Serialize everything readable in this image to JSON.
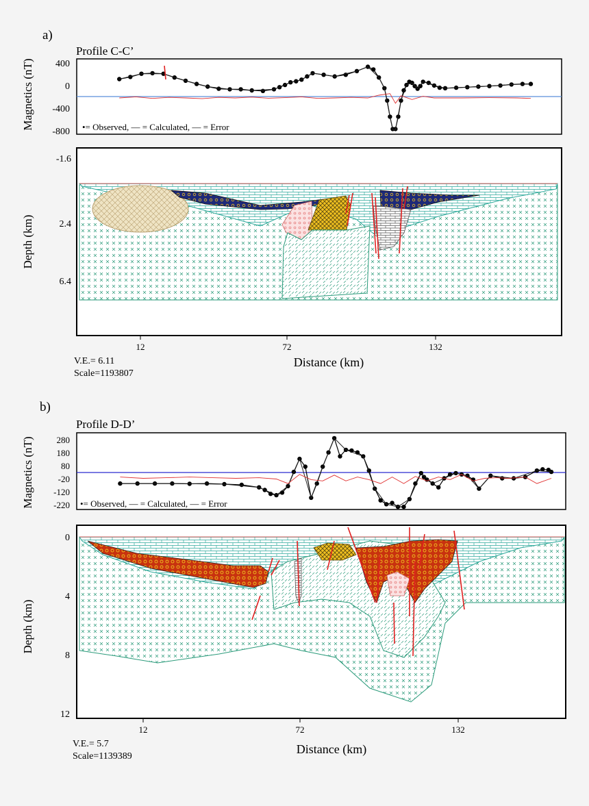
{
  "panel_a": {
    "letter": "a)",
    "profile": "Profile C-C’",
    "mag_ylabel": "Magnetics (nT)",
    "mag_ticks": [
      "400",
      "0",
      "-400",
      "-800"
    ],
    "legend": "•= Observed,   — = Calculated,   — = Error",
    "depth_ylabel": "Depth (km)",
    "depth_ticks": [
      "-1.6",
      "2.4",
      "6.4"
    ],
    "x_ticks": [
      "12",
      "72",
      "132"
    ],
    "xlabel": "Distance (km)",
    "ve": "V.E.= 6.11",
    "scale": "Scale=1193807"
  },
  "panel_b": {
    "letter": "b)",
    "profile": "Profile D-D’",
    "mag_ylabel": "Magnetics (nT)",
    "mag_ticks": [
      "280",
      "180",
      "80",
      "-20",
      "-120",
      "-220"
    ],
    "legend": "•= Observed,   — = Calculated,   — = Error",
    "depth_ylabel": "Depth (km)",
    "depth_ticks": [
      "0",
      "4",
      "8",
      "12"
    ],
    "x_ticks": [
      "12",
      "72",
      "132"
    ],
    "xlabel": "Distance (km)",
    "ve": "V.E.= 5.7",
    "scale": "Scale=1139389"
  },
  "colors": {
    "observed": "#000000",
    "calculated": "#222222",
    "error": "#e03030",
    "baseline_a": "#5b8fd9",
    "baseline_b": "#2a2ad0",
    "limestone": "#2aa89a",
    "basement": "#2a9a7a",
    "sediment_red": "#c8320f",
    "sediment_yellow": "#f0c020",
    "sediment_navy": "#1e2a78",
    "granite_tan": "#d8c89a",
    "fault": "#e02020",
    "pink_body": "#f3b6b6"
  },
  "chart_data": [
    {
      "type": "line",
      "title": "Profile C-C’",
      "xlabel": "Distance (km)",
      "ylabel": "Magnetics (nT)",
      "ylim": [
        -800,
        450
      ],
      "xlim": [
        0,
        155
      ],
      "series": [
        {
          "name": "Observed",
          "x": [
            6,
            10,
            14,
            18,
            22,
            26,
            30,
            34,
            38,
            42,
            46,
            50,
            54,
            58,
            62,
            64,
            66,
            68,
            70,
            72,
            74,
            76,
            80,
            84,
            88,
            92,
            96,
            98,
            100,
            102,
            103,
            104,
            105,
            106,
            107,
            108,
            109,
            110,
            111,
            112,
            113,
            114,
            115,
            116,
            118,
            120,
            122,
            124,
            128,
            132,
            136,
            140,
            144,
            148,
            152,
            155
          ],
          "y": [
            150,
            190,
            250,
            260,
            250,
            180,
            120,
            60,
            10,
            -30,
            -40,
            -40,
            -60,
            -70,
            -40,
            0,
            40,
            90,
            110,
            140,
            200,
            260,
            230,
            200,
            230,
            300,
            380,
            330,
            180,
            -20,
            -250,
            -550,
            -780,
            -780,
            -550,
            -250,
            -60,
            40,
            100,
            80,
            20,
            -30,
            20,
            100,
            80,
            30,
            -10,
            -20,
            -10,
            0,
            10,
            20,
            30,
            50,
            60,
            60
          ]
        },
        {
          "name": "Calculated",
          "x": [
            6,
            14,
            22,
            30,
            38,
            46,
            54,
            62,
            68,
            72,
            76,
            84,
            92,
            96,
            100,
            102,
            104,
            105,
            106,
            108,
            110,
            112,
            114,
            116,
            120,
            124,
            132,
            140,
            148,
            155
          ],
          "y": [
            150,
            250,
            250,
            120,
            10,
            -40,
            -60,
            -40,
            90,
            140,
            260,
            200,
            300,
            380,
            180,
            -20,
            -550,
            -790,
            -790,
            -250,
            40,
            80,
            -30,
            100,
            30,
            -20,
            0,
            20,
            50,
            60
          ]
        },
        {
          "name": "Error",
          "x": [
            6,
            12,
            18,
            24,
            30,
            36,
            42,
            48,
            54,
            60,
            66,
            72,
            78,
            84,
            90,
            96,
            100,
            104,
            106,
            108,
            112,
            116,
            120,
            130,
            140,
            150,
            155
          ],
          "y": [
            -200,
            -180,
            -210,
            -190,
            -200,
            -215,
            -190,
            -200,
            -185,
            -205,
            -195,
            -180,
            -210,
            -200,
            -190,
            -200,
            -150,
            -120,
            -300,
            -160,
            -230,
            -170,
            -200,
            -200,
            -195,
            -200,
            -210
          ]
        }
      ],
      "baseline": -200
    },
    {
      "type": "line",
      "title": "Profile D-D’",
      "xlabel": "Distance (km)",
      "ylabel": "Magnetics (nT)",
      "ylim": [
        -250,
        300
      ],
      "xlim": [
        0,
        155
      ],
      "series": [
        {
          "name": "Observed",
          "x": [
            6,
            12,
            18,
            24,
            30,
            36,
            42,
            48,
            54,
            56,
            58,
            60,
            62,
            64,
            66,
            68,
            70,
            72,
            74,
            76,
            78,
            80,
            82,
            84,
            86,
            88,
            90,
            92,
            94,
            96,
            98,
            100,
            102,
            104,
            106,
            108,
            110,
            111,
            112,
            114,
            116,
            118,
            120,
            122,
            124,
            126,
            128,
            130,
            134,
            138,
            142,
            146,
            150,
            152,
            154,
            155
          ],
          "y": [
            -60,
            -60,
            -60,
            -60,
            -62,
            -60,
            -65,
            -70,
            -90,
            -110,
            -140,
            -150,
            -130,
            -80,
            30,
            130,
            70,
            -170,
            -60,
            70,
            180,
            290,
            150,
            200,
            195,
            180,
            150,
            40,
            -100,
            -190,
            -220,
            -210,
            -240,
            -240,
            -180,
            -60,
            20,
            -10,
            -30,
            -60,
            -90,
            -20,
            10,
            20,
            10,
            0,
            -30,
            -100,
            0,
            -20,
            -20,
            -10,
            40,
            50,
            45,
            30
          ]
        },
        {
          "name": "Calculated",
          "x": [
            6,
            24,
            42,
            54,
            60,
            64,
            68,
            72,
            76,
            80,
            84,
            90,
            94,
            98,
            102,
            106,
            110,
            114,
            118,
            122,
            126,
            130,
            134,
            142,
            150,
            155
          ],
          "y": [
            -60,
            -60,
            -65,
            -90,
            -150,
            -80,
            130,
            -170,
            70,
            290,
            200,
            150,
            -100,
            -220,
            -240,
            -180,
            20,
            -60,
            -20,
            20,
            0,
            -100,
            0,
            -20,
            40,
            30
          ]
        },
        {
          "name": "Error",
          "x": [
            6,
            14,
            22,
            30,
            38,
            46,
            54,
            60,
            64,
            68,
            72,
            76,
            80,
            84,
            88,
            92,
            96,
            100,
            104,
            108,
            112,
            116,
            120,
            124,
            128,
            132,
            136,
            140,
            146,
            150,
            155
          ],
          "y": [
            -10,
            -20,
            -15,
            -10,
            -15,
            -20,
            -15,
            -25,
            -60,
            10,
            -30,
            -40,
            5,
            -40,
            -10,
            -30,
            -60,
            -10,
            -60,
            -5,
            -40,
            -10,
            -30,
            10,
            -40,
            -20,
            -15,
            -20,
            -10,
            -60,
            -20
          ]
        }
      ],
      "baseline": -20
    }
  ]
}
